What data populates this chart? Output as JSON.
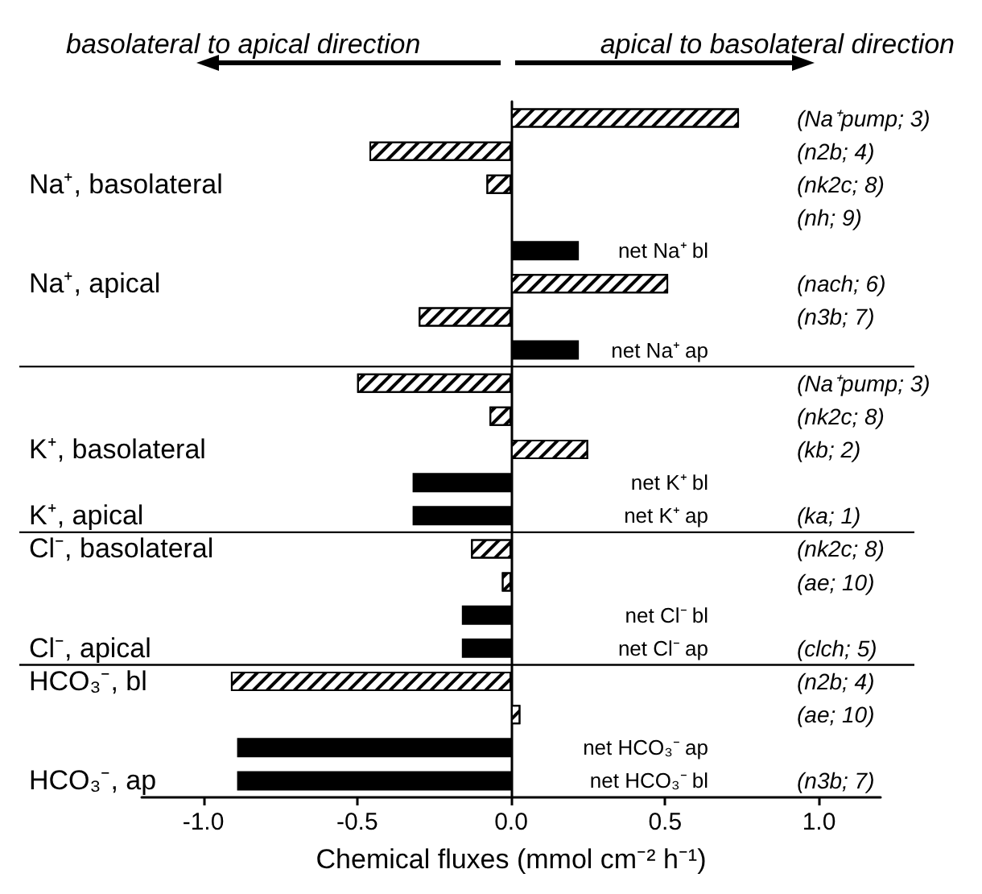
{
  "chart_data": {
    "type": "bar",
    "orientation": "horizontal",
    "annotations": [
      "basolateral to apical direction",
      "apical to basolateral direction"
    ],
    "xlabel": "Chemical fluxes (mmol cm⁻² h⁻¹)",
    "categories": [
      null,
      null,
      "Na⁺, basolateral",
      null,
      null,
      "Na⁺, apical",
      null,
      null,
      null,
      null,
      "K⁺, basolateral",
      null,
      "K⁺, apical",
      "Cl⁻, basolateral",
      null,
      null,
      "Cl⁻, apical",
      "HCO₃⁻, bl",
      null,
      null,
      "HCO₃⁻, ap"
    ],
    "y2_categories": [
      "(Na⁺pump; 3)",
      "(n2b; 4)",
      "(nk2c; 8)",
      "(nh; 9)",
      null,
      "(nach; 6)",
      "(n3b; 7)",
      null,
      "(Na⁺pump; 3)",
      "(nk2c; 8)",
      "(kb; 2)",
      null,
      "(ka; 1)",
      "(nk2c; 8)",
      "(ae; 10)",
      null,
      "(clch; 5)",
      "(n2b; 4)",
      "(ae; 10)",
      null,
      "(n3b; 7)"
    ],
    "xlim": [
      -1.2,
      1.2
    ],
    "xticks": [
      {
        "value": -1,
        "label": "-1.0"
      },
      {
        "value": -0.5,
        "label": "-0.5"
      },
      {
        "value": 0,
        "label": "0.0"
      },
      {
        "value": 0.5,
        "label": "0.5"
      },
      {
        "value": 1,
        "label": "1.0"
      }
    ],
    "series": [
      {
        "color": "#ffffff",
        "values": [
          0.74,
          -0.46,
          -0.08,
          null,
          null,
          0.51,
          -0.3,
          null,
          -0.5,
          -0.07,
          0.25,
          null,
          null,
          -0.13,
          -0.03,
          null,
          null,
          -0.91,
          0.03,
          null,
          null
        ]
      },
      {
        "color": "#000000",
        "values": [
          null,
          null,
          null,
          null,
          0.22,
          null,
          null,
          0.22,
          null,
          null,
          null,
          -0.32,
          -0.32,
          null,
          null,
          -0.16,
          -0.16,
          null,
          null,
          -0.89,
          -0.89
        ],
        "value_labels": [
          null,
          null,
          null,
          null,
          "net Na⁺ bl",
          null,
          null,
          "net Na⁺ ap",
          null,
          null,
          null,
          "net K⁺ bl",
          "net K⁺ ap",
          null,
          null,
          "net Cl⁻ bl",
          "net Cl⁻ ap",
          null,
          null,
          "net HCO₃⁻ ap",
          "net HCO₃⁻ bl"
        ]
      }
    ]
  }
}
